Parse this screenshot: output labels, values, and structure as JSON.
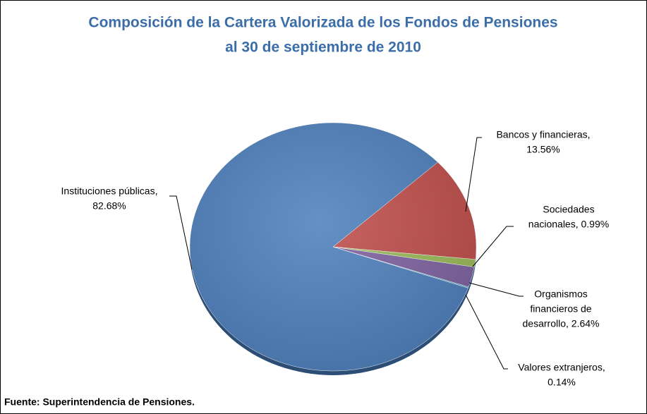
{
  "chart_data": {
    "type": "pie",
    "title": [
      "Composición de la Cartera Valorizada de los Fondos de Pensiones",
      "al 30 de septiembre de 2010"
    ],
    "values": [
      13.56,
      0.99,
      2.64,
      0.14,
      82.68
    ],
    "value_labels": [
      [
        "Bancos y financieras,",
        "13.56%"
      ],
      [
        "Sociedades",
        "nacionales, 0.99%"
      ],
      [
        "Organismos",
        "financieros de",
        "desarrollo, 2.64%"
      ],
      [
        "Valores extranjeros,",
        "0.14%"
      ],
      [
        "Instituciones públicas,",
        "82.68%"
      ]
    ],
    "colors": [
      "#c0504d",
      "#9bbb59",
      "#8064a2",
      "#4bacc6",
      "#4f81bd"
    ],
    "source": "Fuente: Superintendencia de Pensiones."
  }
}
